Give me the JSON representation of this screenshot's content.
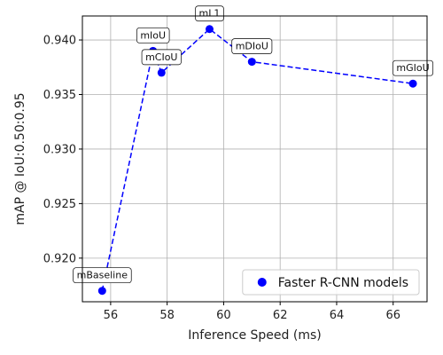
{
  "chart_data": {
    "type": "scatter",
    "xlabel": "Inference Speed (ms)",
    "ylabel": "mAP @ IoU:0.50:0.95",
    "xlim": [
      55,
      67.2
    ],
    "ylim": [
      0.916,
      0.9422
    ],
    "xticks": [
      56,
      58,
      60,
      62,
      64,
      66
    ],
    "yticks": [
      0.92,
      0.925,
      0.93,
      0.935,
      0.94
    ],
    "xtick_labels": [
      "56",
      "58",
      "60",
      "62",
      "64",
      "66"
    ],
    "ytick_labels": [
      "0.920",
      "0.925",
      "0.930",
      "0.935",
      "0.940"
    ],
    "grid": true,
    "legend_position": "lower-right",
    "series": [
      {
        "name": "Faster R-CNN models",
        "color": "#0000ff",
        "connect_order": [
          "mBaseline",
          "mIoU",
          "mCIoU",
          "mL1",
          "mDIoU",
          "mGIoU"
        ],
        "points": [
          {
            "label": "mBaseline",
            "x": 55.7,
            "y": 0.917
          },
          {
            "label": "mIoU",
            "x": 57.5,
            "y": 0.939
          },
          {
            "label": "mCIoU",
            "x": 57.8,
            "y": 0.937
          },
          {
            "label": "mL1",
            "x": 59.5,
            "y": 0.941
          },
          {
            "label": "mDIoU",
            "x": 61.0,
            "y": 0.938
          },
          {
            "label": "mGIoU",
            "x": 66.7,
            "y": 0.936
          }
        ]
      }
    ]
  }
}
